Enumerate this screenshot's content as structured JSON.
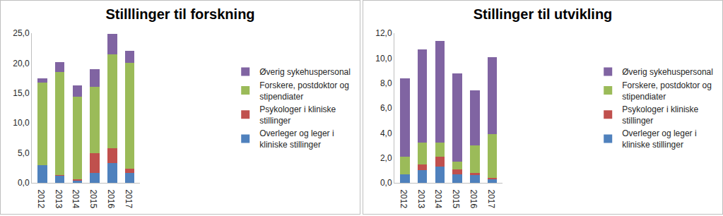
{
  "chart_data": [
    {
      "type": "bar",
      "title": "Stilllinger til forskning",
      "stacked": true,
      "grid": false,
      "legend": "right",
      "categories": [
        "2012",
        "2013",
        "2014",
        "2015",
        "2016",
        "2017"
      ],
      "ylim": [
        0,
        25
      ],
      "yticks": [
        {
          "value": 0,
          "label": "0,0"
        },
        {
          "value": 5,
          "label": "5,0"
        },
        {
          "value": 10,
          "label": "10,0"
        },
        {
          "value": 15,
          "label": "15,0"
        },
        {
          "value": 20,
          "label": "20,0"
        },
        {
          "value": 25,
          "label": "25,0"
        }
      ],
      "series": [
        {
          "name": "Overleger og leger i kliniske stillinger",
          "color": "#4f81bd",
          "values": [
            3.0,
            1.2,
            0.4,
            1.6,
            3.3,
            1.6
          ]
        },
        {
          "name": "Psykologer i kliniske stillinger",
          "color": "#c0504d",
          "values": [
            0.0,
            0.1,
            0.2,
            3.4,
            2.5,
            0.8
          ]
        },
        {
          "name": "Forskere, postdoktor og stipendiater",
          "color": "#9bbb59",
          "values": [
            13.7,
            17.2,
            13.8,
            11.0,
            15.7,
            17.7
          ]
        },
        {
          "name": "Øverig sykehuspersonal",
          "color": "#8064a2",
          "values": [
            0.8,
            1.7,
            1.9,
            3.0,
            3.4,
            1.9
          ]
        }
      ]
    },
    {
      "type": "bar",
      "title": "Stillinger til utvikling",
      "stacked": true,
      "grid": false,
      "legend": "right",
      "categories": [
        "2012",
        "2013",
        "2014",
        "2015",
        "2016",
        "2017"
      ],
      "ylim": [
        0,
        12
      ],
      "yticks": [
        {
          "value": 0,
          "label": "0,0"
        },
        {
          "value": 2,
          "label": "2,0"
        },
        {
          "value": 4,
          "label": "4,0"
        },
        {
          "value": 6,
          "label": "6,0"
        },
        {
          "value": 8,
          "label": "8,0"
        },
        {
          "value": 10,
          "label": "10,0"
        },
        {
          "value": 12,
          "label": "12,0"
        }
      ],
      "series": [
        {
          "name": "Overleger og leger i kliniske stillinger",
          "color": "#4f81bd",
          "values": [
            0.7,
            1.0,
            1.3,
            0.7,
            0.6,
            0.3
          ]
        },
        {
          "name": "Psykologer i kliniske stillinger",
          "color": "#c0504d",
          "values": [
            0.0,
            0.5,
            0.8,
            0.4,
            0.2,
            0.1
          ]
        },
        {
          "name": "Forskere, postdoktor og stipendiater",
          "color": "#9bbb59",
          "values": [
            1.4,
            1.7,
            1.1,
            0.6,
            2.2,
            3.5
          ]
        },
        {
          "name": "Øverig sykehuspersonal",
          "color": "#8064a2",
          "values": [
            6.3,
            7.5,
            8.2,
            7.1,
            4.4,
            6.2
          ]
        }
      ]
    }
  ]
}
